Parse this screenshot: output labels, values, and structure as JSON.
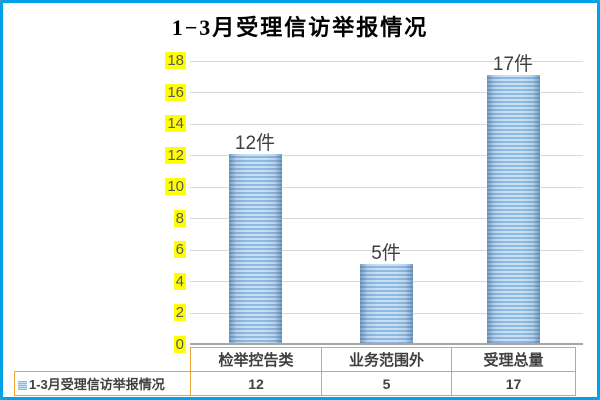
{
  "title": "1−3月受理信访举报情况",
  "colors": {
    "frame_border": "#00A2E8",
    "bar_stripe_light": "#C9DFF2",
    "bar_stripe_dark": "#8FB8E0",
    "gridline": "#D9D9D9",
    "axis_line": "#A6A6A6",
    "table_border": "#EFA136",
    "ytick_highlight": "#FFFF00",
    "ytick_text": "#595959",
    "label_text": "#404040"
  },
  "chart_data": {
    "type": "bar",
    "title": "1−3月受理信访举报情况",
    "categories": [
      "检举控告类",
      "业务范围外",
      "受理总量"
    ],
    "series": [
      {
        "name": "1-3月受理信访举报情况",
        "values": [
          12,
          5,
          17
        ]
      }
    ],
    "data_labels": [
      "12件",
      "5件",
      "17件"
    ],
    "unit": "件",
    "ylim": [
      0,
      18
    ],
    "yticks": [
      18,
      16,
      14,
      12,
      10,
      8,
      6,
      4,
      2,
      0
    ],
    "grid": true,
    "legend_position": "bottom-table-left"
  },
  "table": {
    "legend_label": "1-3月受理信访举报情况",
    "columns": [
      "检举控告类",
      "业务范围外",
      "受理总量"
    ],
    "values": [
      "12",
      "5",
      "17"
    ]
  }
}
